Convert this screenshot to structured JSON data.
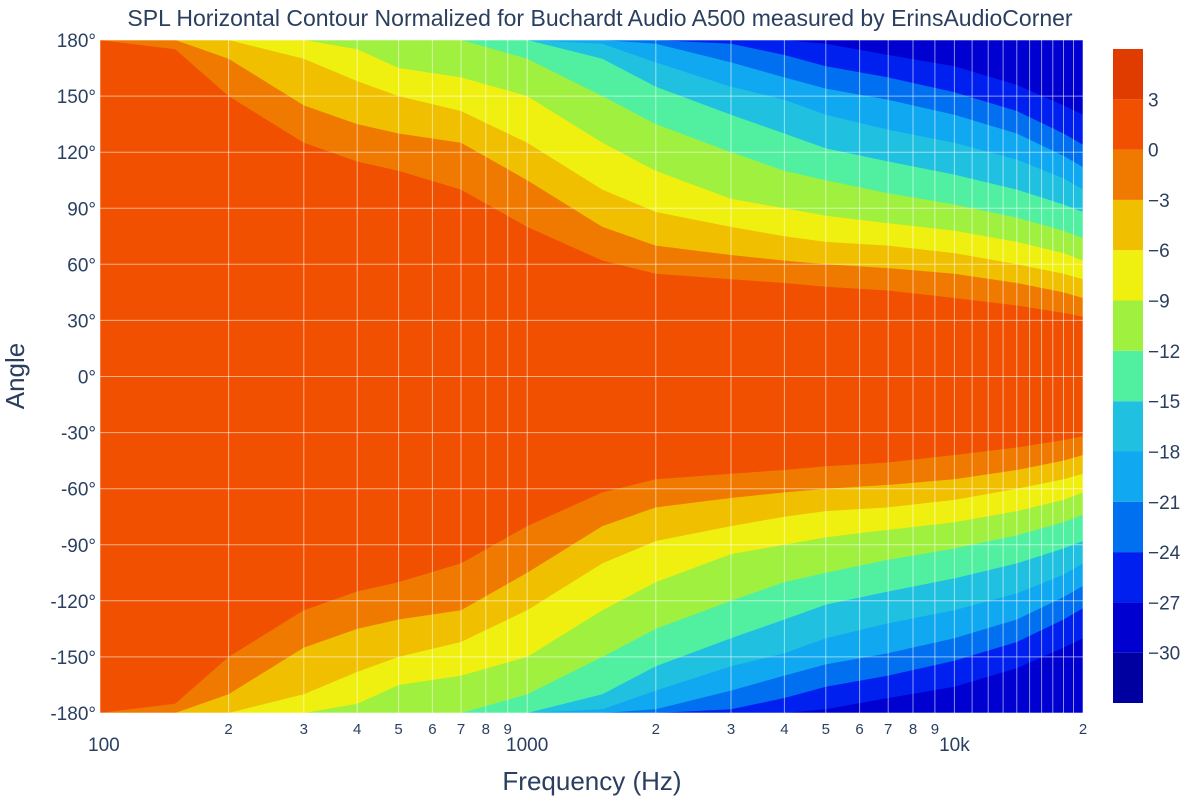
{
  "chart_data": {
    "type": "heatmap",
    "subtype": "filled-contour",
    "title": "SPL Horizontal Contour Normalized for Buchardt Audio A500 measured by ErinsAudioCorner",
    "xlabel": "Frequency (Hz)",
    "ylabel": "Angle",
    "x_scale": "log",
    "xlim": [
      100,
      20000
    ],
    "ylim": [
      -180,
      180
    ],
    "grid": true,
    "x_major_ticks": [
      {
        "value": 100,
        "label": "100"
      },
      {
        "value": 1000,
        "label": "1000"
      },
      {
        "value": 10000,
        "label": "10k"
      }
    ],
    "x_minor_ticks": [
      {
        "value": 200,
        "label": "2"
      },
      {
        "value": 300,
        "label": "3"
      },
      {
        "value": 400,
        "label": "4"
      },
      {
        "value": 500,
        "label": "5"
      },
      {
        "value": 600,
        "label": "6"
      },
      {
        "value": 700,
        "label": "7"
      },
      {
        "value": 800,
        "label": "8"
      },
      {
        "value": 900,
        "label": "9"
      },
      {
        "value": 2000,
        "label": "2"
      },
      {
        "value": 3000,
        "label": "3"
      },
      {
        "value": 4000,
        "label": "4"
      },
      {
        "value": 5000,
        "label": "5"
      },
      {
        "value": 6000,
        "label": "6"
      },
      {
        "value": 7000,
        "label": "7"
      },
      {
        "value": 8000,
        "label": "8"
      },
      {
        "value": 9000,
        "label": "9"
      },
      {
        "value": 20000,
        "label": "2"
      }
    ],
    "x_extra_gridlines": [
      11000,
      12000,
      13000,
      14000,
      15000,
      16000,
      17000,
      18000,
      19000
    ],
    "y_ticks": [
      {
        "value": 180,
        "label": "180°"
      },
      {
        "value": 150,
        "label": "150°"
      },
      {
        "value": 120,
        "label": "120°"
      },
      {
        "value": 90,
        "label": "90°"
      },
      {
        "value": 60,
        "label": "60°"
      },
      {
        "value": 30,
        "label": "30°"
      },
      {
        "value": 0,
        "label": "0°"
      },
      {
        "value": -30,
        "label": "-30°"
      },
      {
        "value": -60,
        "label": "-60°"
      },
      {
        "value": -90,
        "label": "-90°"
      },
      {
        "value": -120,
        "label": "-120°"
      },
      {
        "value": -150,
        "label": "-150°"
      },
      {
        "value": -180,
        "label": "-180°"
      }
    ],
    "colorbar": {
      "zmin": -33,
      "zmax": 6,
      "level_edges": [
        -33,
        -30,
        -27,
        -24,
        -21,
        -18,
        -15,
        -12,
        -9,
        -6,
        -3,
        0,
        3,
        6
      ],
      "level_colors": [
        "#0000a0",
        "#0000d0",
        "#0020f0",
        "#0070f0",
        "#10a8f0",
        "#20c0e0",
        "#50f0a0",
        "#a0f040",
        "#f0f010",
        "#f0c000",
        "#f07a00",
        "#f05000",
        "#e03c00",
        "#ff1010"
      ],
      "tick_labels": [
        {
          "value": 3,
          "label": "3"
        },
        {
          "value": 0,
          "label": "0"
        },
        {
          "value": -3,
          "label": "−3"
        },
        {
          "value": -6,
          "label": "−6"
        },
        {
          "value": -9,
          "label": "−9"
        },
        {
          "value": -12,
          "label": "−12"
        },
        {
          "value": -15,
          "label": "−15"
        },
        {
          "value": -18,
          "label": "−18"
        },
        {
          "value": -21,
          "label": "−21"
        },
        {
          "value": -24,
          "label": "−24"
        },
        {
          "value": -27,
          "label": "−27"
        },
        {
          "value": -30,
          "label": "−30"
        }
      ]
    },
    "contour_boundaries": {
      "description_units": "angle in degrees (upper half) at which normalized SPL falls to the given level, per frequency in Hz",
      "freqs": [
        100,
        150,
        200,
        300,
        400,
        500,
        700,
        1000,
        1500,
        2000,
        3000,
        4000,
        5000,
        7000,
        10000,
        14000,
        18000,
        20000
      ],
      "levels": [
        {
          "level": -3,
          "upper": [
            180,
            175,
            150,
            125,
            115,
            110,
            100,
            80,
            62,
            55,
            52,
            50,
            48,
            46,
            42,
            38,
            34,
            32
          ]
        },
        {
          "level": -6,
          "upper": [
            180,
            180,
            170,
            145,
            135,
            130,
            125,
            105,
            80,
            70,
            65,
            62,
            60,
            58,
            55,
            50,
            45,
            42
          ]
        },
        {
          "level": -9,
          "upper": [
            180,
            180,
            180,
            170,
            158,
            150,
            142,
            125,
            100,
            88,
            80,
            75,
            72,
            70,
            66,
            60,
            55,
            52
          ]
        },
        {
          "level": -12,
          "upper": [
            180,
            180,
            180,
            180,
            175,
            165,
            160,
            150,
            125,
            110,
            95,
            90,
            86,
            82,
            78,
            72,
            66,
            62
          ]
        },
        {
          "level": -15,
          "upper": [
            180,
            180,
            180,
            180,
            180,
            180,
            180,
            170,
            150,
            135,
            120,
            110,
            105,
            98,
            92,
            85,
            78,
            74
          ]
        },
        {
          "level": -18,
          "upper": [
            180,
            180,
            180,
            180,
            180,
            180,
            180,
            180,
            170,
            155,
            140,
            130,
            122,
            115,
            108,
            100,
            92,
            88
          ]
        },
        {
          "level": -21,
          "upper": [
            180,
            180,
            180,
            180,
            180,
            180,
            180,
            180,
            178,
            168,
            155,
            148,
            140,
            132,
            125,
            116,
            106,
            100
          ]
        },
        {
          "level": -24,
          "upper": [
            180,
            180,
            180,
            180,
            180,
            180,
            180,
            180,
            180,
            178,
            168,
            160,
            154,
            148,
            140,
            130,
            118,
            112
          ]
        },
        {
          "level": -27,
          "upper": [
            180,
            180,
            180,
            180,
            180,
            180,
            180,
            180,
            180,
            180,
            178,
            172,
            166,
            160,
            152,
            142,
            130,
            124
          ]
        },
        {
          "level": -30,
          "upper": [
            180,
            180,
            180,
            180,
            180,
            180,
            180,
            180,
            180,
            180,
            180,
            180,
            178,
            172,
            166,
            156,
            145,
            140
          ]
        }
      ]
    }
  }
}
